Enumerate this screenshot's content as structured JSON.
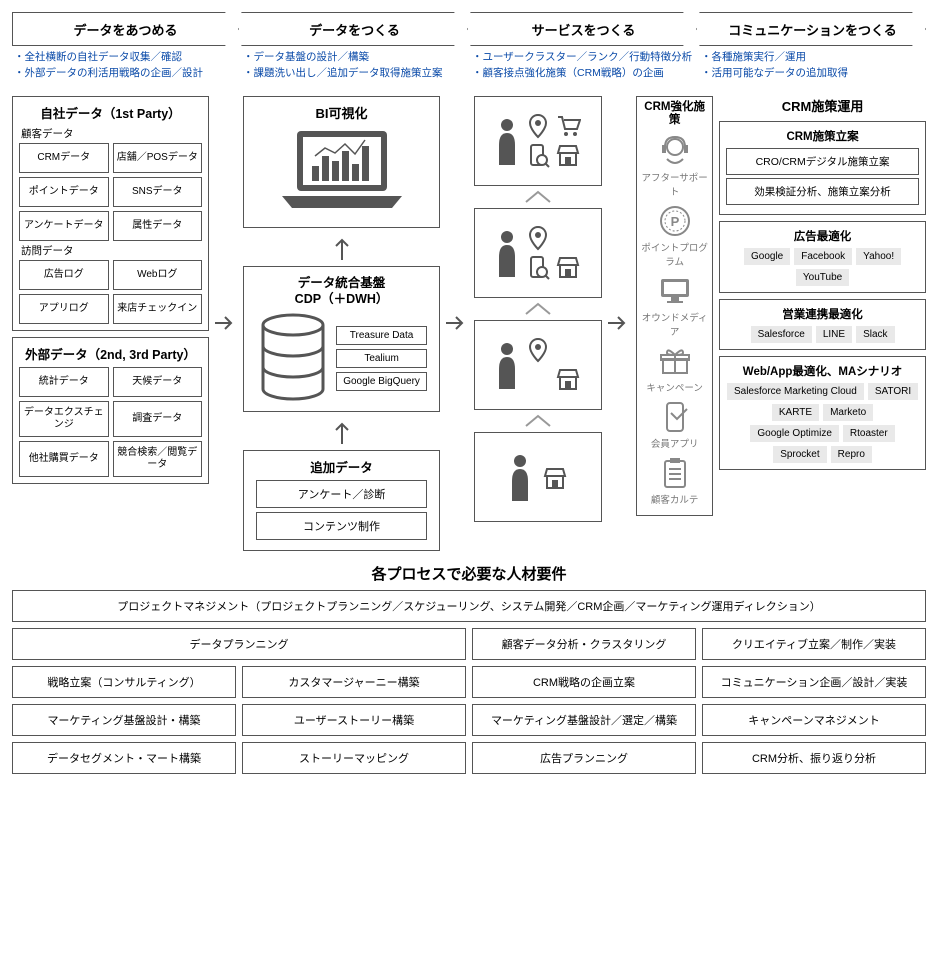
{
  "colors": {
    "border": "#555555",
    "text": "#222222",
    "bullet": "#0a4aa8",
    "iconGray": "#555555",
    "pillBg": "#e9e9e9"
  },
  "stages": [
    {
      "title": "データをあつめる",
      "bullets": [
        "全社横断の自社データ収集／確認",
        "外部データの利活用戦略の企画／設計"
      ]
    },
    {
      "title": "データをつくる",
      "bullets": [
        "データ基盤の設計／構築",
        "課題洗い出し／追加データ取得施策立案"
      ]
    },
    {
      "title": "サービスをつくる",
      "bullets": [
        "ユーザークラスター／ランク／行動特徴分析",
        "顧客接点強化施策（CRM戦略）の企画"
      ]
    },
    {
      "title": "コミュニケーションをつくる",
      "bullets": [
        "各種施策実行／運用",
        "活用可能なデータの追加取得"
      ]
    }
  ],
  "ownData": {
    "title": "自社データ（1st Party）",
    "groups": [
      {
        "label": "顧客データ",
        "items": [
          "CRMデータ",
          "店舗／POSデータ",
          "ポイントデータ",
          "SNSデータ",
          "アンケートデータ",
          "属性データ"
        ]
      },
      {
        "label": "訪問データ",
        "items": [
          "広告ログ",
          "Webログ",
          "アプリログ",
          "来店チェックイン"
        ]
      }
    ]
  },
  "extData": {
    "title": "外部データ（2nd, 3rd Party）",
    "items": [
      "統計データ",
      "天候データ",
      "データエクスチェンジ",
      "調査データ",
      "他社購買データ",
      "競合検索／閲覧データ"
    ]
  },
  "bi": {
    "title": "BI可視化"
  },
  "cdp": {
    "title1": "データ統合基盤",
    "title2": "CDP（＋DWH）",
    "tools": [
      "Treasure Data",
      "Tealium",
      "Google BigQuery"
    ]
  },
  "addData": {
    "title": "追加データ",
    "rows": [
      "アンケート／診断",
      "コンテンツ制作"
    ]
  },
  "crm": {
    "title": "CRM強化施策",
    "items": [
      {
        "icon": "support",
        "label": "アフターサポート"
      },
      {
        "icon": "point",
        "label": "ポイントプログラム"
      },
      {
        "icon": "monitor",
        "label": "オウンドメディア"
      },
      {
        "icon": "gift",
        "label": "キャンペーン"
      },
      {
        "icon": "app",
        "label": "会員アプリ"
      },
      {
        "icon": "clipboard",
        "label": "顧客カルテ"
      }
    ]
  },
  "right": {
    "head": "CRM施策運用",
    "box1": {
      "title": "CRM施策立案",
      "lines": [
        "CRO/CRMデジタル施策立案",
        "効果検証分析、施策立案分析"
      ]
    },
    "box2": {
      "title": "広告最適化",
      "pills": [
        "Google",
        "Facebook",
        "Yahoo!",
        "YouTube"
      ]
    },
    "box3": {
      "title": "営業連携最適化",
      "pills": [
        "Salesforce",
        "LINE",
        "Slack"
      ]
    },
    "box4": {
      "title": "Web/App最適化、MAシナリオ",
      "pills": [
        "Salesforce Marketing Cloud",
        "SATORI",
        "KARTE",
        "Marketo",
        "Google Optimize",
        "Rtoaster",
        "Sprocket",
        "Repro"
      ]
    }
  },
  "bottom": {
    "title": "各プロセスで必要な人材要件",
    "full": "プロジェクトマネジメント（プロジェクトプランニング／スケジューリング、システム開発／CRM企画／マーケティング運用ディレクション）",
    "rows": [
      [
        {
          "t": "データプランニング",
          "span": 2
        },
        {
          "t": "顧客データ分析・クラスタリング"
        },
        {
          "t": "クリエイティブ立案／制作／実装"
        }
      ],
      [
        {
          "t": "戦略立案（コンサルティング）"
        },
        {
          "t": "カスタマージャーニー構築"
        },
        {
          "t": "CRM戦略の企画立案"
        },
        {
          "t": "コミュニケーション企画／設計／実装"
        }
      ],
      [
        {
          "t": "マーケティング基盤設計・構築"
        },
        {
          "t": "ユーザーストーリー構築"
        },
        {
          "t": "マーケティング基盤設計／選定／構築"
        },
        {
          "t": "キャンペーンマネジメント"
        }
      ],
      [
        {
          "t": "データセグメント・マート構築"
        },
        {
          "t": "ストーリーマッピング"
        },
        {
          "t": "広告プランニング"
        },
        {
          "t": "CRM分析、振り返り分析"
        }
      ]
    ]
  }
}
